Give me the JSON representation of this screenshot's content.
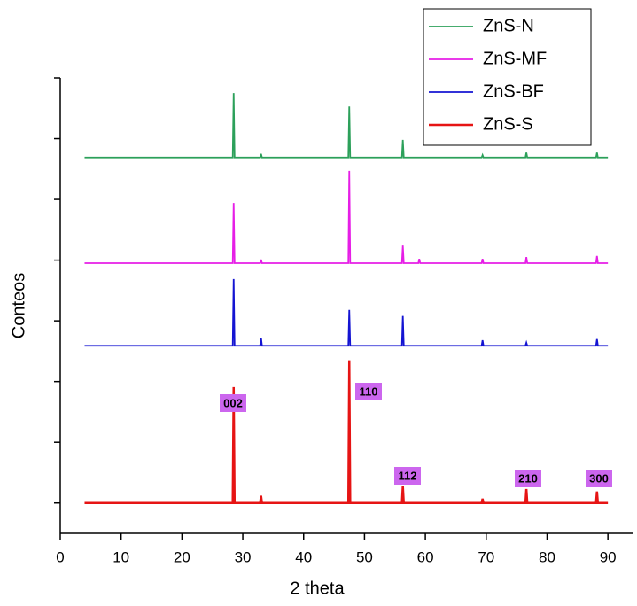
{
  "chart_data": {
    "type": "line",
    "x_label": "2 theta",
    "y_label": "Conteos",
    "x": [
      4,
      28.35,
      28.5,
      28.65,
      32.85,
      33,
      33.15,
      47.35,
      47.5,
      47.65,
      56.15,
      56.3,
      56.45,
      58.85,
      59,
      59.15,
      69.25,
      69.4,
      69.55,
      76.45,
      76.6,
      76.75,
      88.05,
      88.2,
      88.35,
      90
    ],
    "series": [
      {
        "name": "ZnS-N",
        "color": "#2ca05a",
        "values": [
          5.69,
          5.69,
          6.75,
          5.69,
          5.69,
          5.75,
          5.69,
          5.69,
          6.53,
          5.69,
          5.69,
          5.98,
          5.69,
          5.69,
          5.69,
          5.69,
          5.69,
          5.73,
          5.69,
          5.69,
          5.77,
          5.69,
          5.69,
          5.77,
          5.69,
          5.69
        ]
      },
      {
        "name": "ZnS-MF",
        "color": "#e61ee6",
        "values": [
          3.95,
          3.95,
          4.94,
          3.95,
          3.95,
          4.01,
          3.95,
          3.95,
          5.47,
          3.95,
          3.95,
          4.24,
          3.95,
          3.95,
          4.02,
          3.95,
          3.95,
          4.02,
          3.95,
          3.95,
          4.05,
          3.95,
          3.95,
          4.07,
          3.95,
          3.95
        ]
      },
      {
        "name": "ZnS-BF",
        "color": "#1414d2",
        "values": [
          2.59,
          2.59,
          3.69,
          2.59,
          2.59,
          2.72,
          2.59,
          2.59,
          3.18,
          2.59,
          2.59,
          3.08,
          2.59,
          2.59,
          2.59,
          2.59,
          2.59,
          2.68,
          2.59,
          2.59,
          2.64,
          2.59,
          2.59,
          2.7,
          2.59,
          2.59
        ]
      },
      {
        "name": "ZnS-S",
        "color": "#e61414",
        "values": [
          0,
          0,
          1.91,
          0,
          0,
          0.12,
          0,
          0,
          2.35,
          0,
          0,
          0.28,
          0,
          0,
          0,
          0,
          0,
          0.07,
          0,
          0,
          0.23,
          0,
          0,
          0.19,
          0,
          0
        ]
      }
    ],
    "annotations": [
      "002",
      "110",
      "112",
      "210",
      "300"
    ],
    "xlim": [
      0,
      94.2
    ],
    "xticks": [
      0,
      10,
      20,
      30,
      40,
      50,
      60,
      70,
      80,
      90
    ],
    "ylim": [
      -0.5,
      7
    ],
    "yticks": [
      0,
      1,
      2,
      3,
      4,
      5,
      6,
      7
    ],
    "ytick_labels": false,
    "legend": "upper right"
  }
}
